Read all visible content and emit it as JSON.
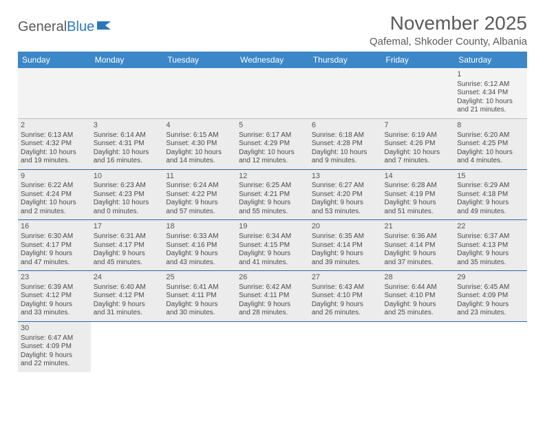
{
  "logo": {
    "text1": "General",
    "text2": "Blue"
  },
  "title": "November 2025",
  "location": "Qafemal, Shkoder County, Albania",
  "colors": {
    "header_bg": "#3b87c8",
    "header_text": "#ffffff",
    "border": "#2b66a5",
    "shaded": "#ececec",
    "text": "#4a4a4a"
  },
  "days_of_week": [
    "Sunday",
    "Monday",
    "Tuesday",
    "Wednesday",
    "Thursday",
    "Friday",
    "Saturday"
  ],
  "weeks": [
    [
      {
        "n": "",
        "sr": "",
        "ss": "",
        "dl1": "",
        "dl2": ""
      },
      {
        "n": "",
        "sr": "",
        "ss": "",
        "dl1": "",
        "dl2": ""
      },
      {
        "n": "",
        "sr": "",
        "ss": "",
        "dl1": "",
        "dl2": ""
      },
      {
        "n": "",
        "sr": "",
        "ss": "",
        "dl1": "",
        "dl2": ""
      },
      {
        "n": "",
        "sr": "",
        "ss": "",
        "dl1": "",
        "dl2": ""
      },
      {
        "n": "",
        "sr": "",
        "ss": "",
        "dl1": "",
        "dl2": ""
      },
      {
        "n": "1",
        "sr": "Sunrise: 6:12 AM",
        "ss": "Sunset: 4:34 PM",
        "dl1": "Daylight: 10 hours",
        "dl2": "and 21 minutes."
      }
    ],
    [
      {
        "n": "2",
        "sr": "Sunrise: 6:13 AM",
        "ss": "Sunset: 4:32 PM",
        "dl1": "Daylight: 10 hours",
        "dl2": "and 19 minutes."
      },
      {
        "n": "3",
        "sr": "Sunrise: 6:14 AM",
        "ss": "Sunset: 4:31 PM",
        "dl1": "Daylight: 10 hours",
        "dl2": "and 16 minutes."
      },
      {
        "n": "4",
        "sr": "Sunrise: 6:15 AM",
        "ss": "Sunset: 4:30 PM",
        "dl1": "Daylight: 10 hours",
        "dl2": "and 14 minutes."
      },
      {
        "n": "5",
        "sr": "Sunrise: 6:17 AM",
        "ss": "Sunset: 4:29 PM",
        "dl1": "Daylight: 10 hours",
        "dl2": "and 12 minutes."
      },
      {
        "n": "6",
        "sr": "Sunrise: 6:18 AM",
        "ss": "Sunset: 4:28 PM",
        "dl1": "Daylight: 10 hours",
        "dl2": "and 9 minutes."
      },
      {
        "n": "7",
        "sr": "Sunrise: 6:19 AM",
        "ss": "Sunset: 4:26 PM",
        "dl1": "Daylight: 10 hours",
        "dl2": "and 7 minutes."
      },
      {
        "n": "8",
        "sr": "Sunrise: 6:20 AM",
        "ss": "Sunset: 4:25 PM",
        "dl1": "Daylight: 10 hours",
        "dl2": "and 4 minutes."
      }
    ],
    [
      {
        "n": "9",
        "sr": "Sunrise: 6:22 AM",
        "ss": "Sunset: 4:24 PM",
        "dl1": "Daylight: 10 hours",
        "dl2": "and 2 minutes."
      },
      {
        "n": "10",
        "sr": "Sunrise: 6:23 AM",
        "ss": "Sunset: 4:23 PM",
        "dl1": "Daylight: 10 hours",
        "dl2": "and 0 minutes."
      },
      {
        "n": "11",
        "sr": "Sunrise: 6:24 AM",
        "ss": "Sunset: 4:22 PM",
        "dl1": "Daylight: 9 hours",
        "dl2": "and 57 minutes."
      },
      {
        "n": "12",
        "sr": "Sunrise: 6:25 AM",
        "ss": "Sunset: 4:21 PM",
        "dl1": "Daylight: 9 hours",
        "dl2": "and 55 minutes."
      },
      {
        "n": "13",
        "sr": "Sunrise: 6:27 AM",
        "ss": "Sunset: 4:20 PM",
        "dl1": "Daylight: 9 hours",
        "dl2": "and 53 minutes."
      },
      {
        "n": "14",
        "sr": "Sunrise: 6:28 AM",
        "ss": "Sunset: 4:19 PM",
        "dl1": "Daylight: 9 hours",
        "dl2": "and 51 minutes."
      },
      {
        "n": "15",
        "sr": "Sunrise: 6:29 AM",
        "ss": "Sunset: 4:18 PM",
        "dl1": "Daylight: 9 hours",
        "dl2": "and 49 minutes."
      }
    ],
    [
      {
        "n": "16",
        "sr": "Sunrise: 6:30 AM",
        "ss": "Sunset: 4:17 PM",
        "dl1": "Daylight: 9 hours",
        "dl2": "and 47 minutes."
      },
      {
        "n": "17",
        "sr": "Sunrise: 6:31 AM",
        "ss": "Sunset: 4:17 PM",
        "dl1": "Daylight: 9 hours",
        "dl2": "and 45 minutes."
      },
      {
        "n": "18",
        "sr": "Sunrise: 6:33 AM",
        "ss": "Sunset: 4:16 PM",
        "dl1": "Daylight: 9 hours",
        "dl2": "and 43 minutes."
      },
      {
        "n": "19",
        "sr": "Sunrise: 6:34 AM",
        "ss": "Sunset: 4:15 PM",
        "dl1": "Daylight: 9 hours",
        "dl2": "and 41 minutes."
      },
      {
        "n": "20",
        "sr": "Sunrise: 6:35 AM",
        "ss": "Sunset: 4:14 PM",
        "dl1": "Daylight: 9 hours",
        "dl2": "and 39 minutes."
      },
      {
        "n": "21",
        "sr": "Sunrise: 6:36 AM",
        "ss": "Sunset: 4:14 PM",
        "dl1": "Daylight: 9 hours",
        "dl2": "and 37 minutes."
      },
      {
        "n": "22",
        "sr": "Sunrise: 6:37 AM",
        "ss": "Sunset: 4:13 PM",
        "dl1": "Daylight: 9 hours",
        "dl2": "and 35 minutes."
      }
    ],
    [
      {
        "n": "23",
        "sr": "Sunrise: 6:39 AM",
        "ss": "Sunset: 4:12 PM",
        "dl1": "Daylight: 9 hours",
        "dl2": "and 33 minutes."
      },
      {
        "n": "24",
        "sr": "Sunrise: 6:40 AM",
        "ss": "Sunset: 4:12 PM",
        "dl1": "Daylight: 9 hours",
        "dl2": "and 31 minutes."
      },
      {
        "n": "25",
        "sr": "Sunrise: 6:41 AM",
        "ss": "Sunset: 4:11 PM",
        "dl1": "Daylight: 9 hours",
        "dl2": "and 30 minutes."
      },
      {
        "n": "26",
        "sr": "Sunrise: 6:42 AM",
        "ss": "Sunset: 4:11 PM",
        "dl1": "Daylight: 9 hours",
        "dl2": "and 28 minutes."
      },
      {
        "n": "27",
        "sr": "Sunrise: 6:43 AM",
        "ss": "Sunset: 4:10 PM",
        "dl1": "Daylight: 9 hours",
        "dl2": "and 26 minutes."
      },
      {
        "n": "28",
        "sr": "Sunrise: 6:44 AM",
        "ss": "Sunset: 4:10 PM",
        "dl1": "Daylight: 9 hours",
        "dl2": "and 25 minutes."
      },
      {
        "n": "29",
        "sr": "Sunrise: 6:45 AM",
        "ss": "Sunset: 4:09 PM",
        "dl1": "Daylight: 9 hours",
        "dl2": "and 23 minutes."
      }
    ],
    [
      {
        "n": "30",
        "sr": "Sunrise: 6:47 AM",
        "ss": "Sunset: 4:09 PM",
        "dl1": "Daylight: 9 hours",
        "dl2": "and 22 minutes."
      },
      {
        "n": "",
        "sr": "",
        "ss": "",
        "dl1": "",
        "dl2": ""
      },
      {
        "n": "",
        "sr": "",
        "ss": "",
        "dl1": "",
        "dl2": ""
      },
      {
        "n": "",
        "sr": "",
        "ss": "",
        "dl1": "",
        "dl2": ""
      },
      {
        "n": "",
        "sr": "",
        "ss": "",
        "dl1": "",
        "dl2": ""
      },
      {
        "n": "",
        "sr": "",
        "ss": "",
        "dl1": "",
        "dl2": ""
      },
      {
        "n": "",
        "sr": "",
        "ss": "",
        "dl1": "",
        "dl2": ""
      }
    ]
  ]
}
